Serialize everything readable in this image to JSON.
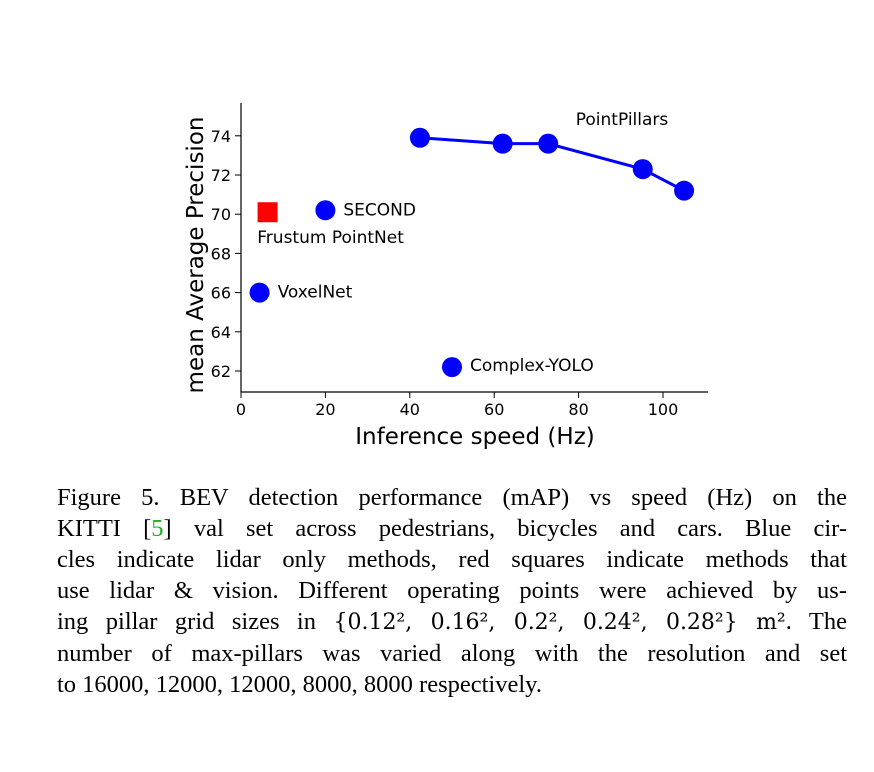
{
  "chart_data": {
    "type": "scatter",
    "xlabel": "Inference speed (Hz)",
    "ylabel": "mean Average Precision",
    "xlim": [
      0,
      105
    ],
    "ylim": [
      61,
      75
    ],
    "x_ticks": [
      0,
      20,
      40,
      60,
      80,
      100
    ],
    "y_ticks": [
      62,
      64,
      66,
      68,
      70,
      72,
      74
    ],
    "grid": false,
    "points": [
      {
        "label": "SECOND",
        "x": 20,
        "y": 70.2,
        "marker": "circle",
        "color": "#0000ff"
      },
      {
        "label": "Frustum PointNet",
        "x": 6.3,
        "y": 70.1,
        "marker": "square",
        "color": "#ff0000"
      },
      {
        "label": "VoxelNet",
        "x": 4.4,
        "y": 66.0,
        "marker": "circle",
        "color": "#0000ff"
      },
      {
        "label": "Complex-YOLO",
        "x": 50,
        "y": 62.2,
        "marker": "circle",
        "color": "#0000ff"
      }
    ],
    "series": [
      {
        "name": "PointPillars",
        "color": "#0000ff",
        "marker": "circle",
        "x": [
          42.4,
          62,
          72.8,
          95.2,
          105
        ],
        "y": [
          73.9,
          73.6,
          73.6,
          72.3,
          71.2
        ]
      }
    ]
  },
  "caption": {
    "lead": "Figure 5. BEV detection performance (mAP) vs speed (Hz) on the",
    "l2a": "KITTI [",
    "ref": "5",
    "l2b": "] val set across pedestrians, bicycles and cars.  Blue cir-",
    "l3": "cles indicate lidar only methods, red squares indicate methods that",
    "l4": "use lidar & vision. Different operating points were achieved by us-",
    "l5a": "ing pillar grid sizes in ",
    "l5math": "{0.12², 0.16², 0.2², 0.24², 0.28²} m²",
    "l5b": ". The",
    "l6": "number of max-pillars was varied along with the resolution and set",
    "l7": "to 16000, 12000, 12000, 8000, 8000 respectively."
  }
}
